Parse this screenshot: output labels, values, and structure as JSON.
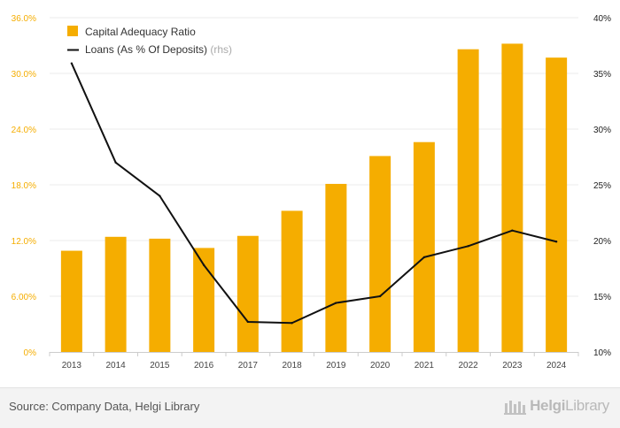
{
  "chart_data": {
    "type": "bar+line",
    "title": "",
    "categories": [
      "2013",
      "2014",
      "2015",
      "2016",
      "2017",
      "2018",
      "2019",
      "2020",
      "2021",
      "2022",
      "2023",
      "2024"
    ],
    "series": [
      {
        "name": "Capital Adequacy Ratio",
        "kind": "bar",
        "axis": "left",
        "color": "#f5ad00",
        "values": [
          10.9,
          12.4,
          12.2,
          11.2,
          12.5,
          15.2,
          18.1,
          21.1,
          22.6,
          32.6,
          33.2,
          31.7
        ]
      },
      {
        "name": "Loans (As % Of Deposits)",
        "suffix": "(rhs)",
        "kind": "line",
        "axis": "right",
        "color": "#111111",
        "values": [
          35.9,
          27.0,
          24.0,
          17.8,
          12.7,
          12.6,
          14.4,
          15.0,
          18.5,
          19.5,
          20.9,
          19.9
        ]
      }
    ],
    "left_axis": {
      "min": 0,
      "max": 36,
      "ticks": [
        "0%",
        "6.00%",
        "12.0%",
        "18.0%",
        "24.0%",
        "30.0%",
        "36.0%"
      ],
      "color": "#f5ad00"
    },
    "right_axis": {
      "min": 10,
      "max": 40,
      "ticks": [
        "10%",
        "15%",
        "20%",
        "25%",
        "30%",
        "35%",
        "40%"
      ]
    },
    "legend_position": "top-left",
    "grid": true
  },
  "footer": {
    "source": "Source: Company Data, Helgi Library",
    "brand_part1": "Helgi",
    "brand_part2": "Library"
  }
}
